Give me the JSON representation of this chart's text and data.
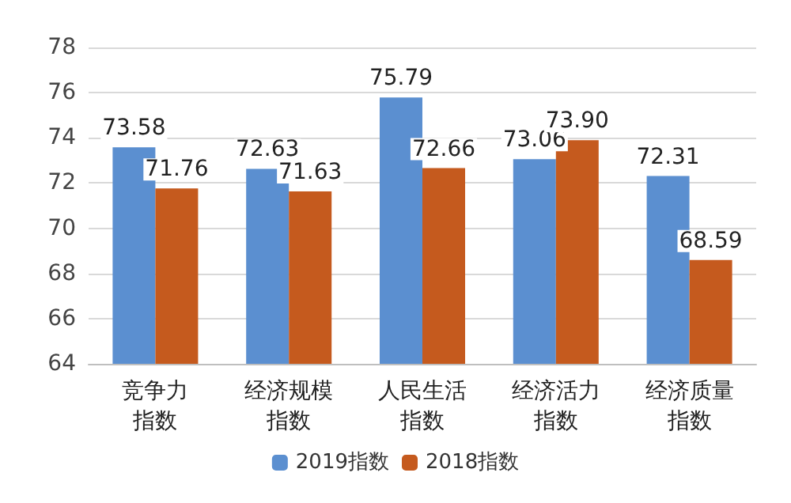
{
  "chart_data": {
    "type": "bar",
    "categories": [
      "竞争力指数",
      "经济规模指数",
      "人民生活指数",
      "经济活力指数",
      "经济质量指数"
    ],
    "series": [
      {
        "name": "2019指数",
        "color": "#5b8fd0",
        "values": [
          73.58,
          72.63,
          75.79,
          73.06,
          72.31
        ],
        "value_labels": [
          "73.58",
          "72.63",
          "75.79",
          "73.06",
          "72.31"
        ]
      },
      {
        "name": "2018指数",
        "color": "#c55a1e",
        "values": [
          71.76,
          71.63,
          72.66,
          73.9,
          68.59
        ],
        "value_labels": [
          "71.76",
          "71.63",
          "72.66",
          "73.90",
          "68.59"
        ]
      }
    ],
    "ylim": [
      64,
      78
    ],
    "yticks": [
      64,
      66,
      68,
      70,
      72,
      74,
      76,
      78
    ],
    "grid": "y",
    "legend": "bottom"
  }
}
